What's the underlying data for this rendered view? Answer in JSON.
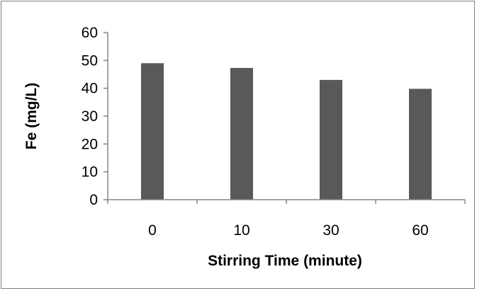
{
  "chart_data": {
    "type": "bar",
    "categories": [
      "0",
      "10",
      "30",
      "60"
    ],
    "values": [
      49,
      47.3,
      43,
      39.8
    ],
    "xlabel": "Stirring Time (minute)",
    "ylabel": "Fe (mg/L)",
    "ylim": [
      0,
      60
    ],
    "yticks": [
      "0",
      "10",
      "20",
      "30",
      "40",
      "50",
      "60"
    ],
    "grid": false,
    "legend": "none",
    "bar_color": "#595959",
    "axis_color": "#868686"
  }
}
